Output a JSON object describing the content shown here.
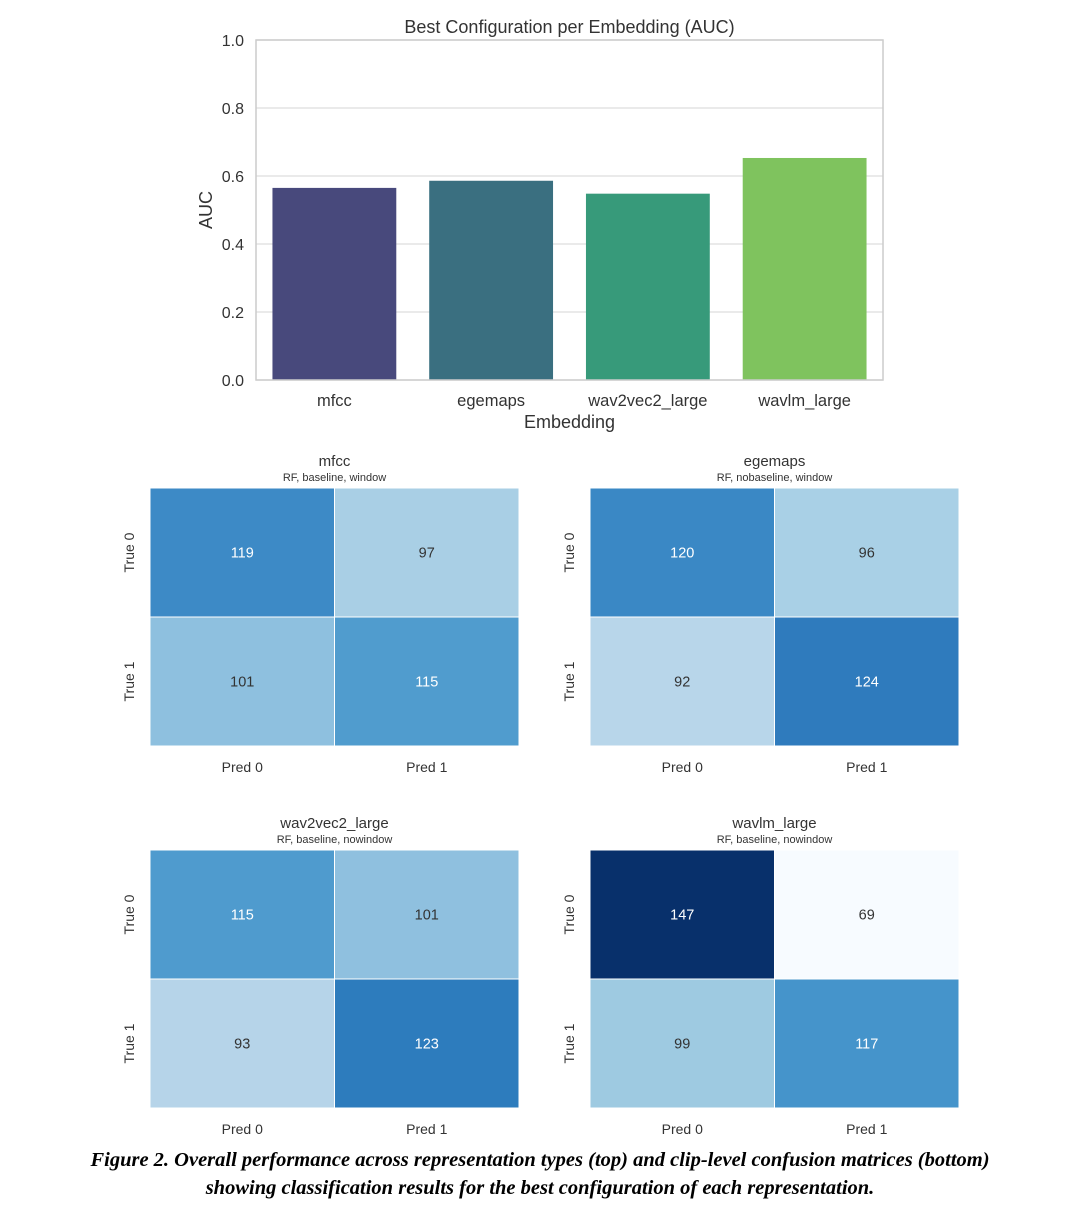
{
  "chart_data": [
    {
      "type": "bar",
      "title": "Best Configuration per Embedding (AUC)",
      "xlabel": "Embedding",
      "ylabel": "AUC",
      "categories": [
        "mfcc",
        "egemaps",
        "wav2vec2_large",
        "wavlm_large"
      ],
      "values": [
        0.565,
        0.586,
        0.548,
        0.653
      ],
      "colors": [
        "#48497c",
        "#3a6f80",
        "#379a7a",
        "#7fc35e"
      ],
      "ylim": [
        0,
        1.0
      ],
      "yticks": [
        "0.0",
        "0.2",
        "0.4",
        "0.6",
        "0.8",
        "1.0"
      ],
      "grid": true
    },
    {
      "type": "heatmap",
      "title": "mfcc",
      "subtitle": "RF, baseline, window",
      "row_labels": [
        "True 0",
        "True 1"
      ],
      "col_labels": [
        "Pred 0",
        "Pred 1"
      ],
      "values": [
        [
          119,
          97
        ],
        [
          101,
          115
        ]
      ],
      "cell_colors": [
        [
          "#3d8ac6",
          "#a9cfe5"
        ],
        [
          "#8ec0df",
          "#509cce"
        ]
      ],
      "text_colors": [
        [
          "#ffffff",
          "#333333"
        ],
        [
          "#333333",
          "#ffffff"
        ]
      ]
    },
    {
      "type": "heatmap",
      "title": "egemaps",
      "subtitle": "RF, nobaseline, window",
      "row_labels": [
        "True 0",
        "True 1"
      ],
      "col_labels": [
        "Pred 0",
        "Pred 1"
      ],
      "values": [
        [
          120,
          96
        ],
        [
          92,
          124
        ]
      ],
      "cell_colors": [
        [
          "#3a88c5",
          "#a9d0e6"
        ],
        [
          "#b8d6ea",
          "#2f7bbd"
        ]
      ],
      "text_colors": [
        [
          "#ffffff",
          "#333333"
        ],
        [
          "#333333",
          "#ffffff"
        ]
      ]
    },
    {
      "type": "heatmap",
      "title": "wav2vec2_large",
      "subtitle": "RF, baseline, nowindow",
      "row_labels": [
        "True 0",
        "True 1"
      ],
      "col_labels": [
        "Pred 0",
        "Pred 1"
      ],
      "values": [
        [
          115,
          101
        ],
        [
          93,
          123
        ]
      ],
      "cell_colors": [
        [
          "#4f9bce",
          "#8fc0df"
        ],
        [
          "#b6d4e9",
          "#2d7cbd"
        ]
      ],
      "text_colors": [
        [
          "#ffffff",
          "#333333"
        ],
        [
          "#333333",
          "#ffffff"
        ]
      ]
    },
    {
      "type": "heatmap",
      "title": "wavlm_large",
      "subtitle": "RF, baseline, nowindow",
      "row_labels": [
        "True 0",
        "True 1"
      ],
      "col_labels": [
        "Pred 0",
        "Pred 1"
      ],
      "values": [
        [
          147,
          69
        ],
        [
          99,
          117
        ]
      ],
      "cell_colors": [
        [
          "#08306b",
          "#f7fbff"
        ],
        [
          "#9ecae1",
          "#4594cb"
        ]
      ],
      "text_colors": [
        [
          "#ffffff",
          "#333333"
        ],
        [
          "#333333",
          "#ffffff"
        ]
      ]
    }
  ],
  "caption": {
    "line1": "Figure 2. Overall performance across representation types (top) and clip-level confusion matrices (bottom)",
    "line2": "showing classification results for the best configuration of each representation."
  }
}
